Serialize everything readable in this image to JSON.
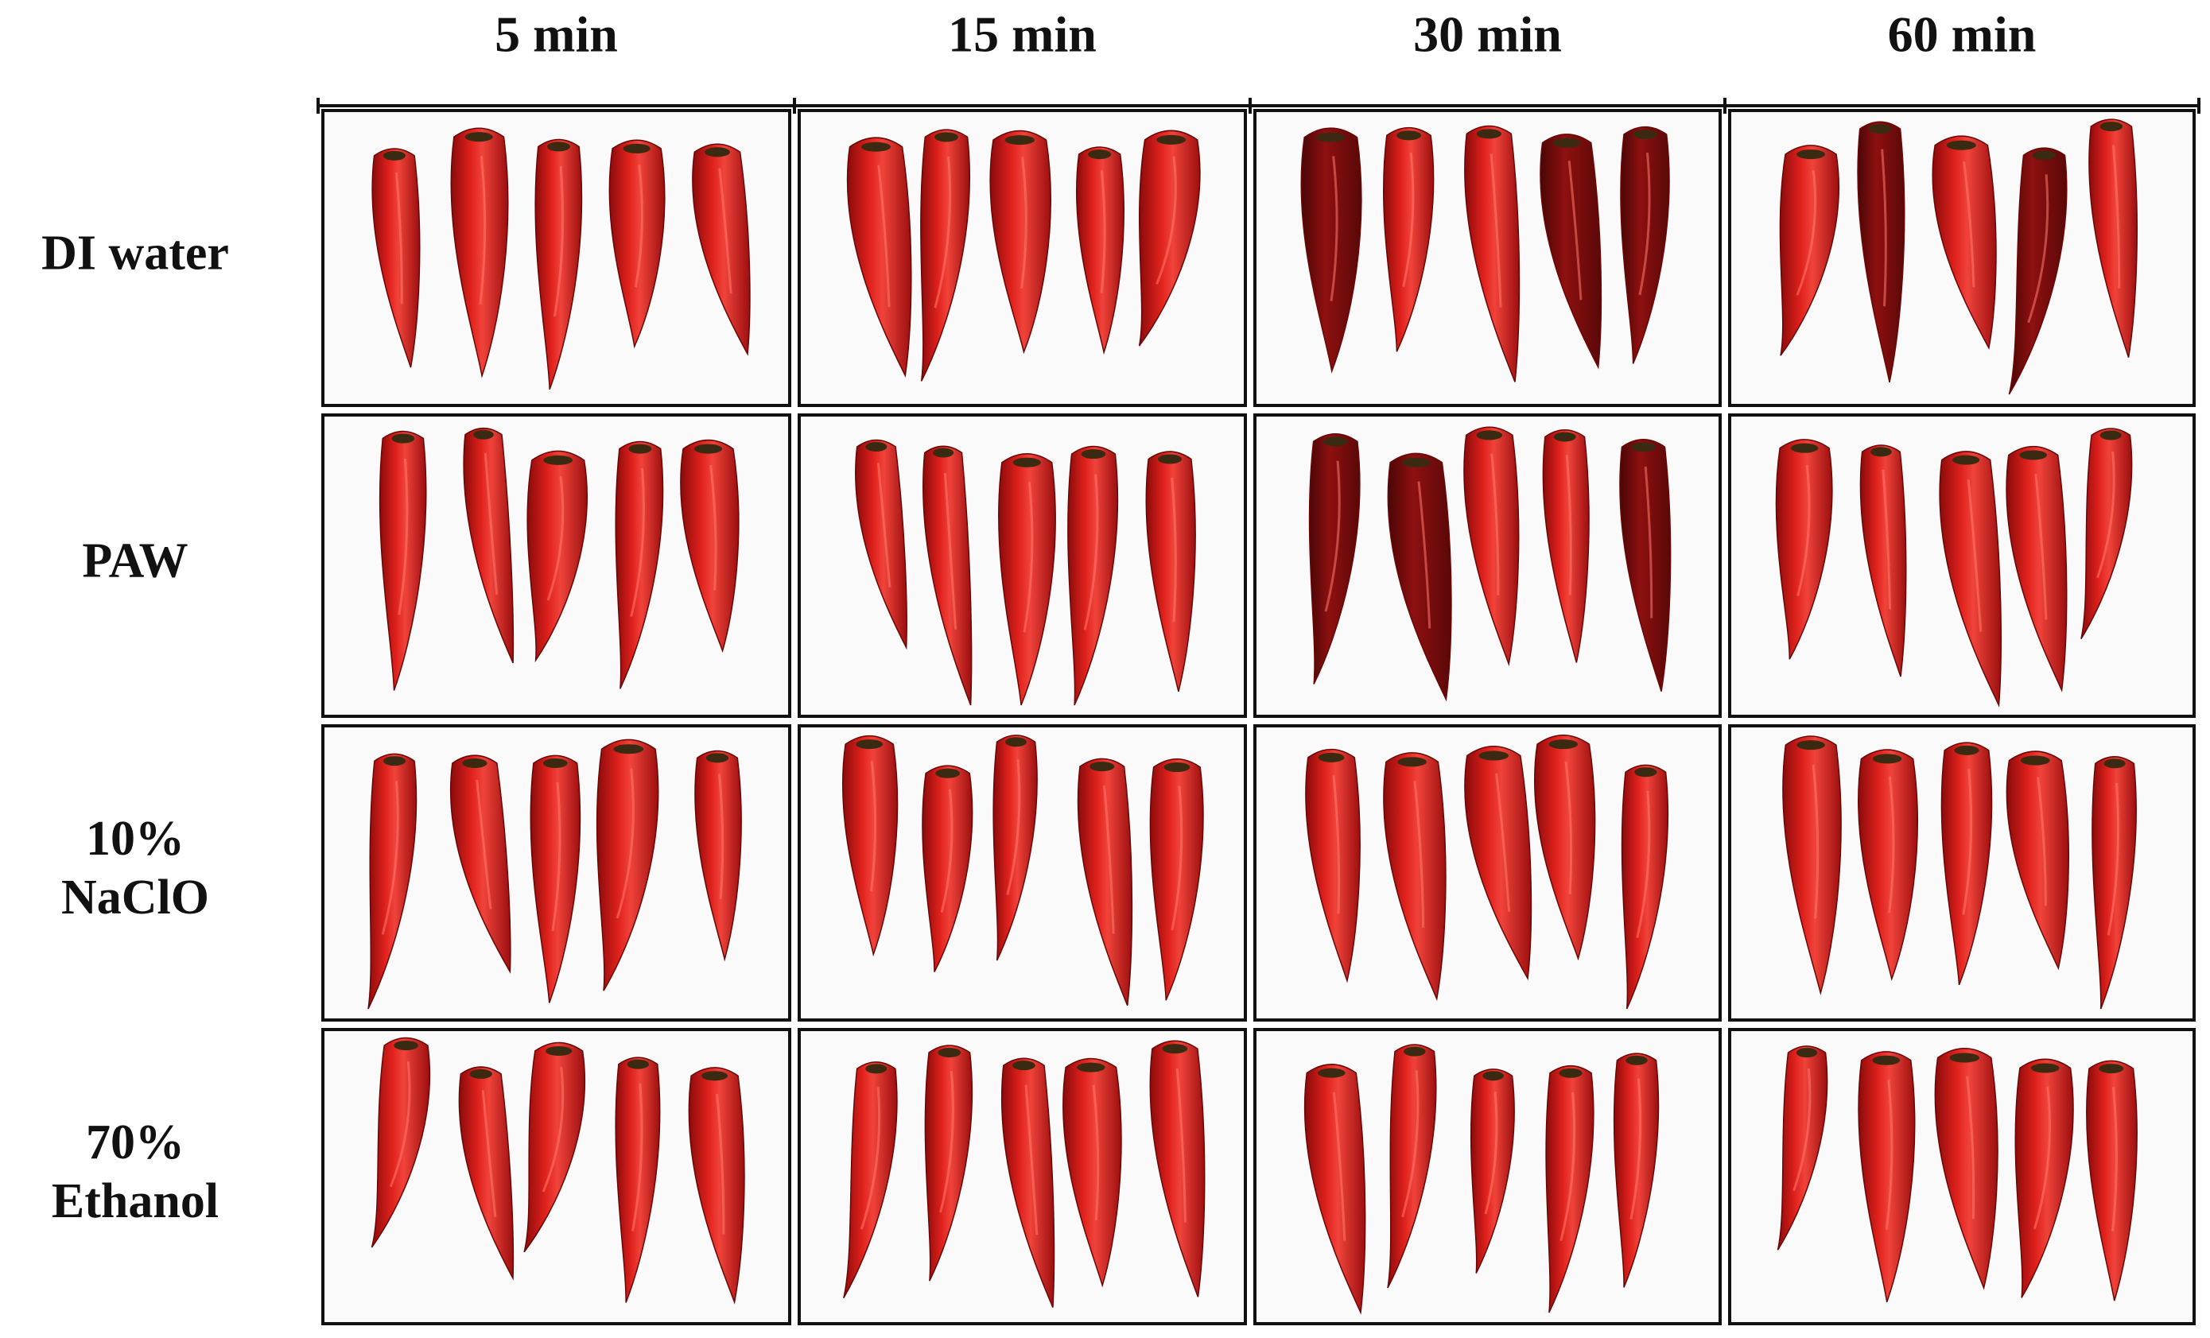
{
  "columns": [
    "5 min",
    "15 min",
    "30 min",
    "60 min"
  ],
  "rows": [
    [
      "DI water"
    ],
    [
      "PAW"
    ],
    [
      "10%",
      "NaClO"
    ],
    [
      "70%",
      "Ethanol"
    ]
  ]
}
